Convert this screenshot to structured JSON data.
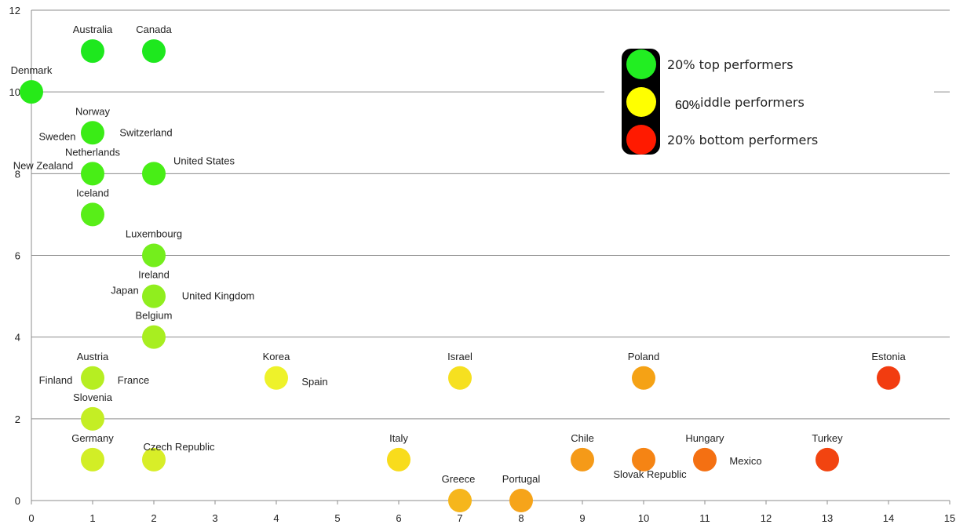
{
  "chart_data": {
    "type": "scatter",
    "xlim": [
      0,
      15
    ],
    "ylim": [
      0,
      12
    ],
    "x_ticks": [
      "0",
      "1",
      "2",
      "3",
      "4",
      "5",
      "6",
      "7",
      "8",
      "9",
      "10",
      "11",
      "12",
      "13",
      "14",
      "15"
    ],
    "y_ticks": [
      "0",
      "2",
      "4",
      "6",
      "8",
      "10",
      "12"
    ],
    "grid": "horizontal",
    "legend": {
      "placement": "top-right",
      "items": [
        {
          "label": "20% top performers",
          "color": "#22ee22"
        },
        {
          "label": "iddle performers",
          "color": "#ffff00"
        },
        {
          "label": "20% bottom performers",
          "color": "#ff1a00"
        }
      ],
      "overlay_label": "60%"
    },
    "points": [
      {
        "name": "Australia",
        "x": 1,
        "y": 11,
        "color": "#1ee81e"
      },
      {
        "name": "Canada",
        "x": 2,
        "y": 11,
        "color": "#1ee81e"
      },
      {
        "name": "Denmark",
        "x": 0,
        "y": 10,
        "color": "#26ea18"
      },
      {
        "name": "Norway",
        "x": 1,
        "y": 9,
        "color": "#3aec16"
      },
      {
        "name": "Sweden",
        "x": 1,
        "y": 9,
        "color": "#3aec16"
      },
      {
        "name": "Switzerland",
        "x": 1,
        "y": 9,
        "color": "#3aec16"
      },
      {
        "name": "Netherlands",
        "x": 1,
        "y": 8,
        "color": "#48ee16"
      },
      {
        "name": "New Zealand",
        "x": 1,
        "y": 8,
        "color": "#48ee16"
      },
      {
        "name": "United States",
        "x": 2,
        "y": 8,
        "color": "#48ee16"
      },
      {
        "name": "Iceland",
        "x": 1,
        "y": 7,
        "color": "#58ee18"
      },
      {
        "name": "Luxembourg",
        "x": 2,
        "y": 6,
        "color": "#74ee1c"
      },
      {
        "name": "Ireland",
        "x": 2,
        "y": 5,
        "color": "#90ee1e"
      },
      {
        "name": "Japan",
        "x": 2,
        "y": 5,
        "color": "#90ee1e"
      },
      {
        "name": "United Kingdom",
        "x": 2,
        "y": 5,
        "color": "#90ee1e"
      },
      {
        "name": "Belgium",
        "x": 2,
        "y": 4,
        "color": "#a8ee20"
      },
      {
        "name": "Austria",
        "x": 1,
        "y": 3,
        "color": "#b6ee22"
      },
      {
        "name": "Finland",
        "x": 1,
        "y": 3,
        "color": "#b6ee22"
      },
      {
        "name": "France",
        "x": 1,
        "y": 3,
        "color": "#b6ee22"
      },
      {
        "name": "Korea",
        "x": 4,
        "y": 3,
        "color": "#eef22a"
      },
      {
        "name": "Spain",
        "x": 4,
        "y": 3,
        "color": "#eef22a"
      },
      {
        "name": "Israel",
        "x": 7,
        "y": 3,
        "color": "#f6e020"
      },
      {
        "name": "Poland",
        "x": 10,
        "y": 3,
        "color": "#f5a215"
      },
      {
        "name": "Estonia",
        "x": 14,
        "y": 3,
        "color": "#f23c10"
      },
      {
        "name": "Slovenia",
        "x": 1,
        "y": 2,
        "color": "#c4ee24"
      },
      {
        "name": "Germany",
        "x": 1,
        "y": 1,
        "color": "#d2ee26"
      },
      {
        "name": "Czech Republic",
        "x": 2,
        "y": 1,
        "color": "#d8ee28"
      },
      {
        "name": "Italy",
        "x": 6,
        "y": 1,
        "color": "#f8dc1c"
      },
      {
        "name": "Chile",
        "x": 9,
        "y": 1,
        "color": "#f59a18"
      },
      {
        "name": "Slovak Republic",
        "x": 10,
        "y": 1,
        "color": "#f58414"
      },
      {
        "name": "Hungary",
        "x": 11,
        "y": 1,
        "color": "#f47012"
      },
      {
        "name": "Mexico",
        "x": 11,
        "y": 1,
        "color": "#f47012"
      },
      {
        "name": "Turkey",
        "x": 13,
        "y": 1,
        "color": "#f24410"
      },
      {
        "name": "Greece",
        "x": 7,
        "y": 0,
        "color": "#f6b61c"
      },
      {
        "name": "Portugal",
        "x": 8,
        "y": 0,
        "color": "#f6a41a"
      }
    ]
  }
}
